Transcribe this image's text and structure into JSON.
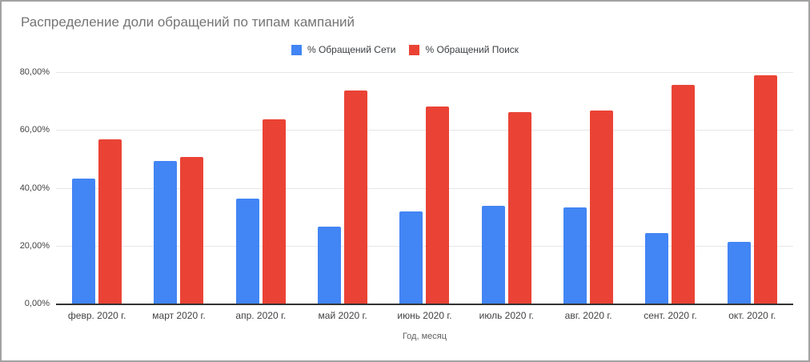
{
  "chart_data": {
    "type": "bar",
    "title": "Распределение доли обращений по типам кампаний",
    "xlabel": "Год, месяц",
    "ylabel": "",
    "categories": [
      "февр. 2020 г.",
      "март 2020 г.",
      "апр. 2020 г.",
      "май 2020 г.",
      "июнь 2020 г.",
      "июль 2020 г.",
      "авг. 2020 г.",
      "сент. 2020 г.",
      "окт. 2020 г."
    ],
    "series": [
      {
        "name": "% Обращений Сети",
        "color": "#4285F4",
        "values": [
          43.3,
          49.3,
          36.4,
          26.5,
          31.9,
          33.9,
          33.3,
          24.3,
          21.2
        ]
      },
      {
        "name": "% Обращений Поиск",
        "color": "#EA4335",
        "values": [
          56.7,
          50.7,
          63.6,
          73.5,
          68.1,
          66.1,
          66.7,
          75.7,
          78.8
        ]
      }
    ],
    "y_ticks": [
      "0,00%",
      "20,00%",
      "40,00%",
      "60,00%",
      "80,00%"
    ],
    "ylim": [
      0,
      80
    ],
    "grid": true,
    "legend_position": "top-center",
    "value_format": "percent"
  },
  "colors": {
    "title_text": "#757575",
    "axis_text": "#424242",
    "gridline": "#e6e6e6",
    "baseline": "#333333",
    "frame_border": "#a2a2a2",
    "background": "#ffffff"
  }
}
